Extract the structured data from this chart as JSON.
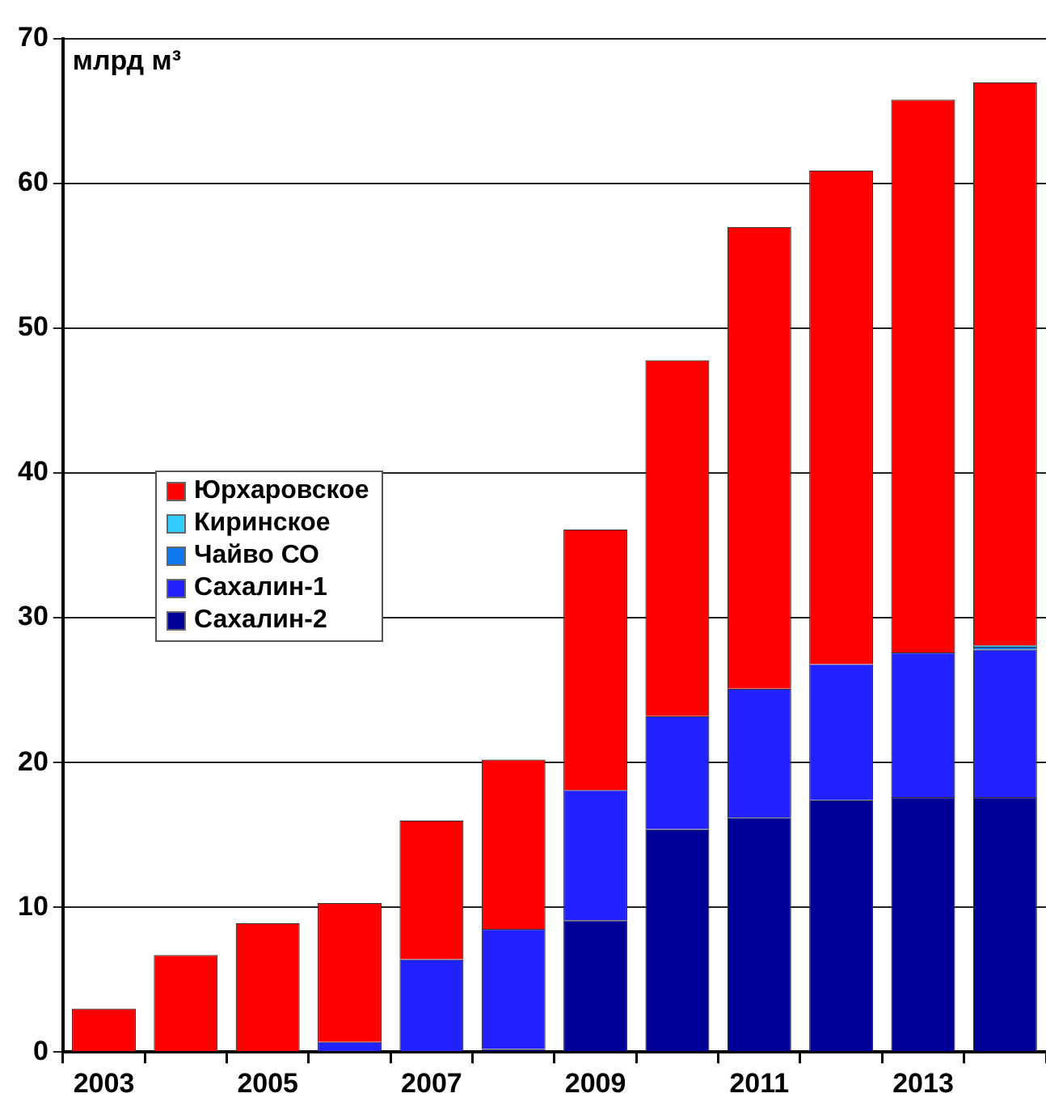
{
  "chart_data": {
    "type": "bar",
    "ylabel": "млрд м³",
    "stacked": true,
    "categories": [
      "2003",
      null,
      "2005",
      null,
      "2007",
      null,
      "2009",
      null,
      "2011",
      null,
      "2013",
      null
    ],
    "series": [
      {
        "name": "Сахалин-2",
        "color": "#000099",
        "values": [
          0,
          0,
          0,
          0,
          0,
          0.2,
          9.1,
          15.4,
          16.2,
          17.4,
          17.6,
          17.6
        ]
      },
      {
        "name": "Сахалин-1",
        "color": "#2222ff",
        "values": [
          0,
          0,
          0,
          0.7,
          6.4,
          8.3,
          9.0,
          7.8,
          8.9,
          9.4,
          10.0,
          10.2
        ]
      },
      {
        "name": "Чайво СО",
        "color": "#1177ee",
        "values": [
          0,
          0,
          0,
          0,
          0,
          0,
          0,
          0,
          0,
          0,
          0,
          0.2
        ]
      },
      {
        "name": "Киринское",
        "color": "#33ccff",
        "values": [
          0,
          0,
          0,
          0,
          0,
          0,
          0,
          0,
          0,
          0,
          0,
          0.1
        ]
      },
      {
        "name": "Юрхаровское",
        "color": "#ff0000",
        "values": [
          3.0,
          6.7,
          8.9,
          9.6,
          9.6,
          11.7,
          18.0,
          24.6,
          31.9,
          34.1,
          38.2,
          38.9
        ]
      }
    ],
    "ylim": [
      0,
      70
    ],
    "yticks": [
      0,
      10,
      20,
      30,
      40,
      50,
      60,
      70
    ],
    "grid": "y",
    "legend": "left"
  }
}
